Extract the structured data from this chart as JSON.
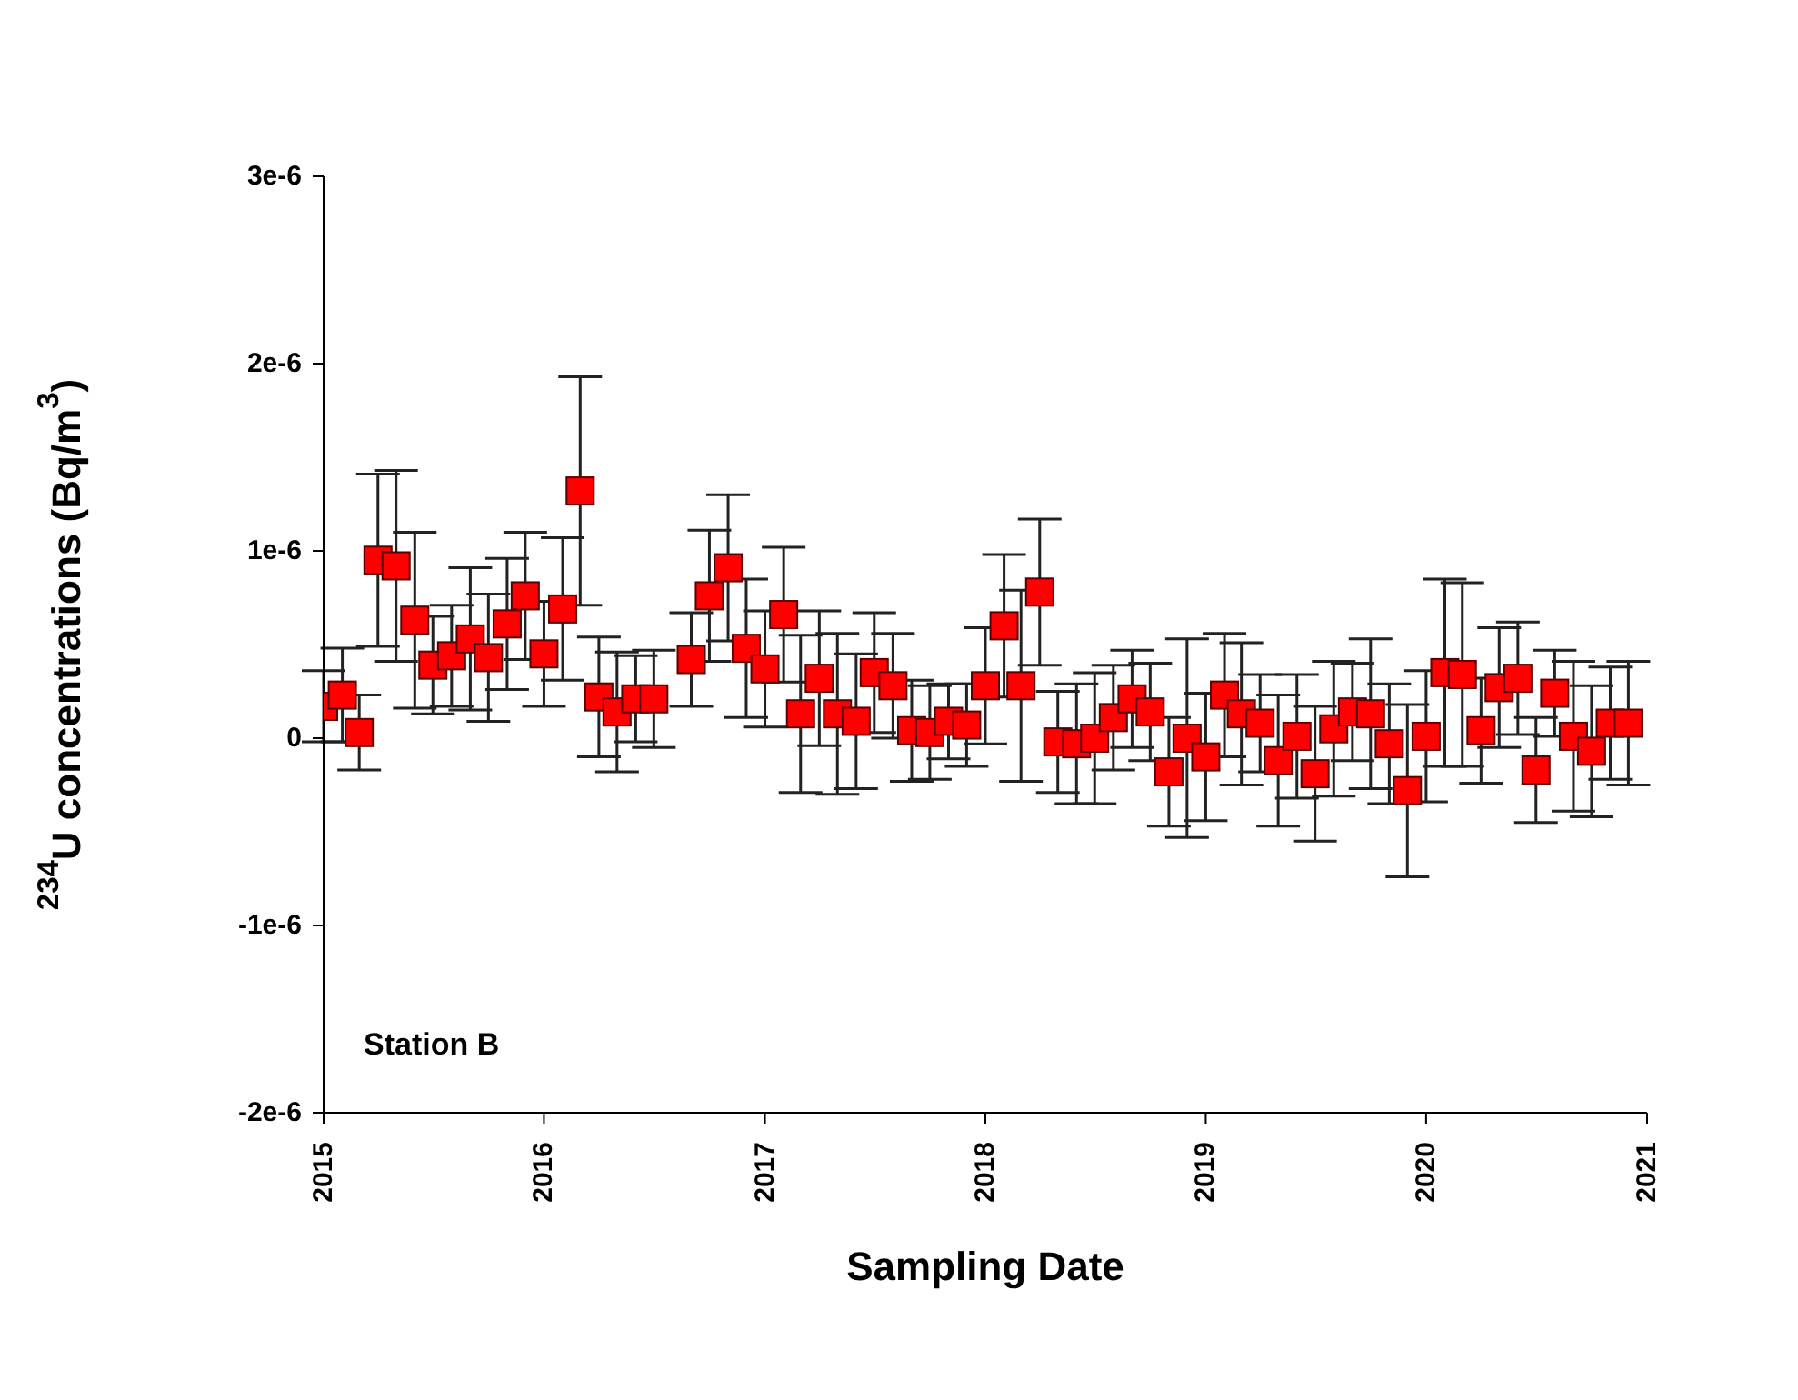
{
  "chart_data": {
    "type": "scatter",
    "xlabel": "Sampling Date",
    "ylabel": "$^{234}$U concentrations (Bq/m$^{3}$)",
    "annotations": [
      "Station B"
    ],
    "marker": "square",
    "color": "#ff0000",
    "x": [
      "2015-01",
      "2015-02",
      "2015-03",
      "2015-04",
      "2015-05",
      "2015-06",
      "2015-07",
      "2015-08",
      "2015-09",
      "2015-10",
      "2015-11",
      "2015-12",
      "2016-01",
      "2016-02",
      "2016-03",
      "2016-04",
      "2016-05",
      "2016-06",
      "2016-07",
      "2016-09",
      "2016-10",
      "2016-11",
      "2016-12",
      "2017-01",
      "2017-02",
      "2017-03",
      "2017-04",
      "2017-05",
      "2017-06",
      "2017-07",
      "2017-08",
      "2017-09",
      "2017-10",
      "2017-11",
      "2017-12",
      "2018-01",
      "2018-02",
      "2018-03",
      "2018-04",
      "2018-05",
      "2018-06",
      "2018-07",
      "2018-08",
      "2018-09",
      "2018-10",
      "2018-11",
      "2018-12",
      "2019-01",
      "2019-02",
      "2019-03",
      "2019-04",
      "2019-05",
      "2019-06",
      "2019-07",
      "2019-08",
      "2019-09",
      "2019-10",
      "2019-11",
      "2019-12",
      "2020-01",
      "2020-02",
      "2020-03",
      "2020-04",
      "2020-05",
      "2020-06",
      "2020-07",
      "2020-08",
      "2020-09",
      "2020-10",
      "2020-11",
      "2020-12"
    ],
    "values": [
      1.7e-07,
      2.3e-07,
      3e-08,
      9.5e-07,
      9.2e-07,
      6.3e-07,
      3.9e-07,
      4.4e-07,
      5.3e-07,
      4.3e-07,
      6.1e-07,
      7.6e-07,
      4.5e-07,
      6.9e-07,
      1.32e-06,
      2.2e-07,
      1.4e-07,
      2.1e-07,
      2.1e-07,
      4.2e-07,
      7.6e-07,
      9.1e-07,
      4.8e-07,
      3.7e-07,
      6.6e-07,
      1.3e-07,
      3.2e-07,
      1.3e-07,
      9e-08,
      3.5e-07,
      2.8e-07,
      4e-08,
      3e-08,
      9e-08,
      7e-08,
      2.8e-07,
      6e-07,
      2.8e-07,
      7.8e-07,
      -2e-08,
      -3e-08,
      0,
      1.1e-07,
      2.1e-07,
      1.4e-07,
      -1.8e-07,
      0,
      -1e-07,
      2.3e-07,
      1.3e-07,
      8e-08,
      -1.2e-07,
      1e-08,
      -1.9e-07,
      5e-08,
      1.4e-07,
      1.3e-07,
      -3e-08,
      -2.8e-07,
      1e-08,
      3.5e-07,
      3.4e-07,
      4e-08,
      2.7e-07,
      3.2e-07,
      -1.7e-07,
      2.4e-07,
      1e-08,
      -7e-08,
      8e-08,
      8e-08
    ],
    "errors": [
      1.9e-07,
      2.5e-07,
      2e-07,
      4.6e-07,
      5.1e-07,
      4.7e-07,
      2.6e-07,
      2.7e-07,
      3.8e-07,
      3.4e-07,
      3.5e-07,
      3.4e-07,
      2.8e-07,
      3.8e-07,
      6.1e-07,
      3.2e-07,
      3.2e-07,
      2.3e-07,
      2.6e-07,
      2.5e-07,
      3.5e-07,
      3.9e-07,
      3.7e-07,
      3.1e-07,
      3.6e-07,
      4.2e-07,
      3.6e-07,
      4.3e-07,
      3.6e-07,
      3.2e-07,
      2.8e-07,
      2.7e-07,
      2.5e-07,
      2e-07,
      2.2e-07,
      3.1e-07,
      3.8e-07,
      5.1e-07,
      3.9e-07,
      2.7e-07,
      3.2e-07,
      3.5e-07,
      2.8e-07,
      2.6e-07,
      2.6e-07,
      2.9e-07,
      5.3e-07,
      3.4e-07,
      3.3e-07,
      3.8e-07,
      2.6e-07,
      3.5e-07,
      3.3e-07,
      3.6e-07,
      3.6e-07,
      2.6e-07,
      4e-07,
      3.2e-07,
      4.6e-07,
      3.5e-07,
      5e-07,
      4.9e-07,
      2.8e-07,
      3.2e-07,
      3e-07,
      2.8e-07,
      2.3e-07,
      4e-07,
      3.5e-07,
      3e-07,
      3.3e-07
    ],
    "xlim": [
      "2015",
      "2021"
    ],
    "xticks": [
      "2015",
      "2016",
      "2017",
      "2018",
      "2019",
      "2020",
      "2021"
    ],
    "ylim": [
      -2e-06,
      3e-06
    ],
    "yticks": [
      {
        "value": -2e-06,
        "label": "-2e-6"
      },
      {
        "value": -1e-06,
        "label": "-1e-6"
      },
      {
        "value": 0,
        "label": "0"
      },
      {
        "value": 1e-06,
        "label": "1e-6"
      },
      {
        "value": 2e-06,
        "label": "2e-6"
      },
      {
        "value": 3e-06,
        "label": "3e-6"
      }
    ]
  }
}
